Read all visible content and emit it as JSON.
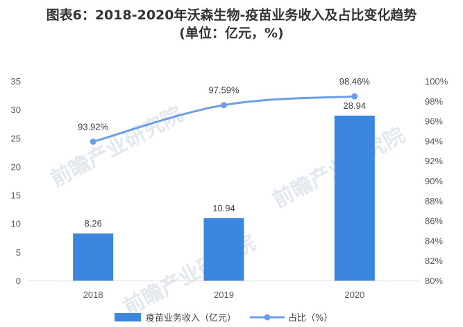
{
  "title_line1": "图表6：2018-2020年沃森生物-疫苗业务收入及占比变化趋势",
  "title_line2": "(单位：亿元，%)",
  "watermark": "前瞻产业研究院",
  "chart_data": {
    "type": "bar",
    "categories": [
      "2018",
      "2019",
      "2020"
    ],
    "series": [
      {
        "name": "疫苗业务收入（亿元）",
        "type": "bar",
        "axis": "left",
        "values": [
          8.26,
          10.94,
          28.94
        ],
        "labels": [
          "8.26",
          "10.94",
          "28.94"
        ],
        "color": "#3d86e0"
      },
      {
        "name": "占比（%）",
        "type": "line",
        "axis": "right",
        "values": [
          93.92,
          97.59,
          98.46
        ],
        "labels": [
          "93.92%",
          "97.59%",
          "98.46%"
        ],
        "color": "#6a9fe6"
      }
    ],
    "yleft": {
      "min": 0,
      "max": 35,
      "ticks": [
        "0",
        "5",
        "10",
        "15",
        "20",
        "25",
        "30",
        "35"
      ]
    },
    "yright": {
      "min": 80,
      "max": 100,
      "ticks": [
        "80%",
        "82%",
        "84%",
        "86%",
        "88%",
        "90%",
        "92%",
        "94%",
        "96%",
        "98%",
        "100%"
      ]
    },
    "legend_position": "bottom",
    "grid": false
  }
}
